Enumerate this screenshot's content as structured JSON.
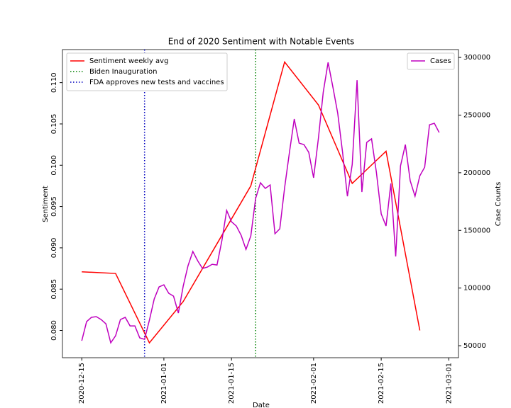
{
  "chart_data": {
    "type": "line",
    "title": "End of 2020 Sentiment with Notable Events",
    "xlabel": "Date",
    "ylabel": "Sentiment",
    "y2label": "Case Counts",
    "xlim": [
      "2020-12-11",
      "2021-03-03"
    ],
    "xticks": [
      "2020-12-15",
      "2021-01-01",
      "2021-01-15",
      "2021-02-01",
      "2021-02-15",
      "2021-03-01"
    ],
    "ylim": [
      0.0767,
      0.114
    ],
    "yticks": [
      {
        "value": 0.08,
        "label": "0.080"
      },
      {
        "value": 0.085,
        "label": "0.085"
      },
      {
        "value": 0.09,
        "label": "0.090"
      },
      {
        "value": 0.095,
        "label": "0.095"
      },
      {
        "value": 0.1,
        "label": "0.100"
      },
      {
        "value": 0.105,
        "label": "0.105"
      },
      {
        "value": 0.11,
        "label": "0.110"
      }
    ],
    "y2lim": [
      39600,
      306800
    ],
    "y2ticks": [
      50000,
      100000,
      150000,
      200000,
      250000,
      300000
    ],
    "legend": "upper left",
    "legend2": "upper right",
    "series": [
      {
        "name": "Sentiment weekly avg",
        "color": "#ff0000",
        "axis": "y",
        "x": [
          "2020-12-15",
          "2020-12-22",
          "2020-12-29",
          "2021-01-05",
          "2021-01-12",
          "2021-01-19",
          "2021-01-26",
          "2021-02-02",
          "2021-02-09",
          "2021-02-16",
          "2021-02-23"
        ],
        "values": [
          0.0871,
          0.0869,
          0.0785,
          0.0835,
          0.0905,
          0.0975,
          0.1125,
          0.1073,
          0.0978,
          0.1017,
          0.08
        ]
      },
      {
        "name": "Cases",
        "color": "#bf00bf",
        "axis": "y2",
        "x": [
          "2020-12-15",
          "2020-12-16",
          "2020-12-17",
          "2020-12-18",
          "2020-12-19",
          "2020-12-20",
          "2020-12-21",
          "2020-12-22",
          "2020-12-23",
          "2020-12-24",
          "2020-12-25",
          "2020-12-26",
          "2020-12-27",
          "2020-12-28",
          "2020-12-29",
          "2020-12-30",
          "2020-12-31",
          "2021-01-01",
          "2021-01-02",
          "2021-01-03",
          "2021-01-04",
          "2021-01-05",
          "2021-01-06",
          "2021-01-07",
          "2021-01-08",
          "2021-01-09",
          "2021-01-10",
          "2021-01-11",
          "2021-01-12",
          "2021-01-13",
          "2021-01-14",
          "2021-01-15",
          "2021-01-16",
          "2021-01-17",
          "2021-01-18",
          "2021-01-19",
          "2021-01-20",
          "2021-01-21",
          "2021-01-22",
          "2021-01-23",
          "2021-01-24",
          "2021-01-25",
          "2021-01-26",
          "2021-01-27",
          "2021-01-28",
          "2021-01-29",
          "2021-01-30",
          "2021-01-31",
          "2021-02-01",
          "2021-02-02",
          "2021-02-03",
          "2021-02-04",
          "2021-02-05",
          "2021-02-06",
          "2021-02-07",
          "2021-02-08",
          "2021-02-09",
          "2021-02-10",
          "2021-02-11",
          "2021-02-12",
          "2021-02-13",
          "2021-02-14",
          "2021-02-15",
          "2021-02-16",
          "2021-02-17",
          "2021-02-18",
          "2021-02-19",
          "2021-02-20",
          "2021-02-21",
          "2021-02-22",
          "2021-02-23",
          "2021-02-24",
          "2021-02-25",
          "2021-02-26",
          "2021-02-27"
        ],
        "values": [
          54300,
          70900,
          74600,
          75200,
          72700,
          69000,
          52500,
          58600,
          72700,
          74600,
          67200,
          67200,
          56800,
          55500,
          72100,
          90500,
          101000,
          102800,
          95500,
          93000,
          78300,
          101600,
          119400,
          131700,
          123700,
          117000,
          118200,
          120600,
          120000,
          140900,
          167300,
          157500,
          153800,
          145800,
          133500,
          145200,
          177800,
          191300,
          186400,
          189400,
          147100,
          151400,
          187000,
          217700,
          246600,
          225700,
          224400,
          217700,
          195600,
          230000,
          269900,
          295700,
          274200,
          251500,
          217700,
          179600,
          207200,
          280300,
          183300,
          226300,
          229400,
          200500,
          164300,
          153800,
          190700,
          127400,
          206000,
          224400,
          193100,
          179600,
          197400,
          204800,
          241600,
          242900,
          234900
        ]
      }
    ],
    "vlines": [
      {
        "name": "Biden Inauguration",
        "x": "2021-01-20",
        "color": "#008000"
      },
      {
        "name": "FDA approves new tests and vaccines",
        "x": "2020-12-28",
        "color": "#0000bf"
      }
    ]
  }
}
